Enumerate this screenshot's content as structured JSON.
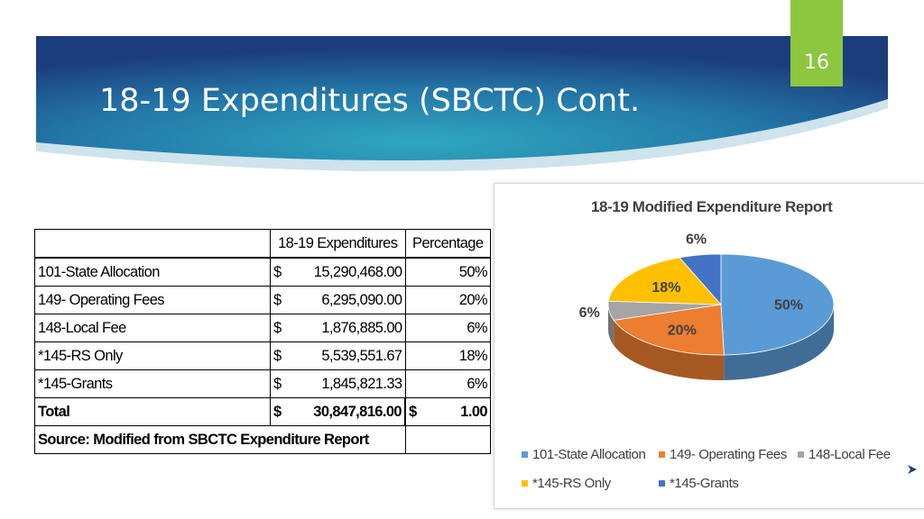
{
  "slide": {
    "title": "18-19 Expenditures (SBCTC) Cont.",
    "number": "16",
    "accent": "#8dc63f",
    "banner_dark": "#1f3f7a",
    "banner_light": "#2a9ab5"
  },
  "table": {
    "header_expenditures": "18-19 Expenditures",
    "header_percentage": "Percentage",
    "currency": "$",
    "rows": [
      {
        "label": "101-State Allocation",
        "amount": "15,290,468.00",
        "pct": "50%"
      },
      {
        "label": "149- Operating Fees",
        "amount": "6,295,090.00",
        "pct": "20%"
      },
      {
        "label": "148-Local Fee",
        "amount": "1,876,885.00",
        "pct": "6%"
      },
      {
        "label": "*145-RS Only",
        "amount": "5,539,551.67",
        "pct": "18%"
      },
      {
        "label": "*145-Grants",
        "amount": "1,845,821.33",
        "pct": "6%"
      }
    ],
    "total": {
      "label": "Total",
      "amount": "30,847,816.00",
      "pct": "1.00"
    },
    "source": "Source: Modified from SBCTC Expenditure Report"
  },
  "chart_data": {
    "type": "pie",
    "title": "18-19 Modified Expenditure Report",
    "three_d": true,
    "legend_position": "bottom",
    "categories": [
      "101-State Allocation",
      "149- Operating Fees",
      "148-Local Fee",
      "*145-RS Only",
      "*145-Grants"
    ],
    "values": [
      15290468.0,
      6295090.0,
      1876885.0,
      5539551.67,
      1845821.33
    ],
    "labels": [
      "50%",
      "20%",
      "6%",
      "18%",
      "6%"
    ],
    "colors": [
      "#5b9bd5",
      "#ed7d31",
      "#a5a5a5",
      "#ffc000",
      "#4472c4"
    ]
  }
}
